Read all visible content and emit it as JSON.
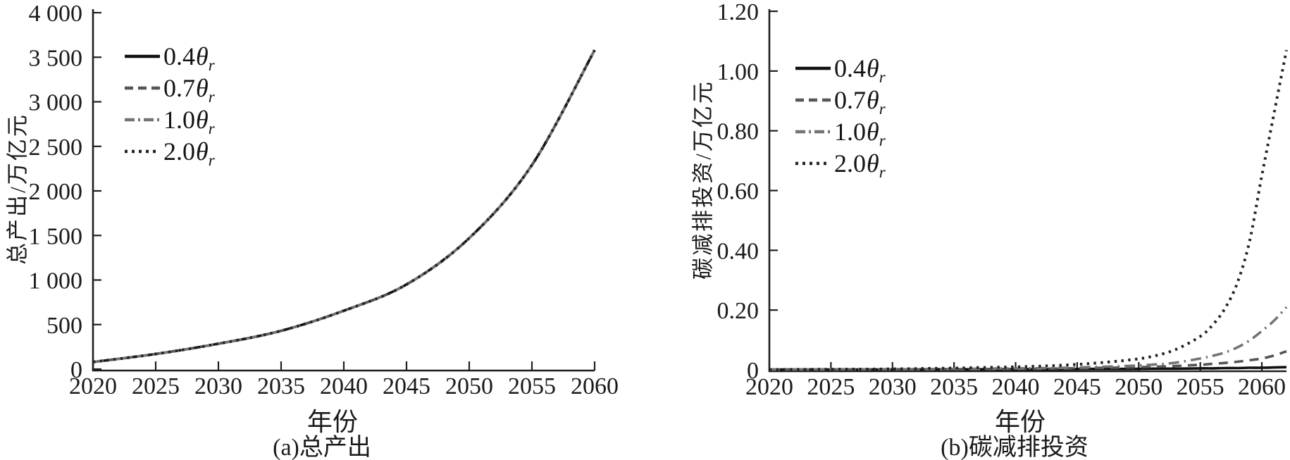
{
  "chart_data": [
    {
      "type": "line",
      "panel": "a",
      "caption": "(a)总产出",
      "xlabel": "年份",
      "ylabel": "总产出/万亿元",
      "xlim": [
        2020,
        2060
      ],
      "ylim": [
        0,
        4000
      ],
      "grid": false,
      "legend_position": "upper-left-inside",
      "x_ticks": [
        2020,
        2025,
        2030,
        2035,
        2040,
        2045,
        2050,
        2055,
        2060
      ],
      "x_tick_labels": [
        "2020",
        "2025",
        "2030",
        "2035",
        "2040",
        "2045",
        "2050",
        "2055",
        "2060"
      ],
      "y_ticks": [
        0,
        500,
        1000,
        1500,
        2000,
        2500,
        3000,
        3500,
        4000
      ],
      "y_tick_labels": [
        "0",
        "500",
        "1 000",
        "1 500",
        "2 000",
        "2 500",
        "3 000",
        "3 500",
        "4 000"
      ],
      "x": [
        2020,
        2025,
        2030,
        2035,
        2040,
        2045,
        2050,
        2055,
        2060
      ],
      "series": [
        {
          "name": "0.4θr",
          "label_coef": "0.4",
          "label_sym": "θ",
          "label_sub": "r",
          "style": "solid",
          "color": "#101010",
          "values": [
            80,
            170,
            285,
            430,
            655,
            950,
            1470,
            2290,
            3580
          ]
        },
        {
          "name": "0.7θr",
          "label_coef": "0.7",
          "label_sym": "θ",
          "label_sub": "r",
          "style": "dashed",
          "color": "#555555",
          "values": [
            80,
            170,
            285,
            430,
            655,
            950,
            1470,
            2290,
            3580
          ]
        },
        {
          "name": "1.0θr",
          "label_coef": "1.0",
          "label_sym": "θ",
          "label_sub": "r",
          "style": "dashdot",
          "color": "#747474",
          "values": [
            80,
            170,
            285,
            430,
            655,
            950,
            1470,
            2290,
            3580
          ]
        },
        {
          "name": "2.0θr",
          "label_coef": "2.0",
          "label_sym": "θ",
          "label_sub": "r",
          "style": "dotted",
          "color": "#232323",
          "values": [
            80,
            170,
            285,
            430,
            655,
            950,
            1470,
            2290,
            3580
          ]
        }
      ]
    },
    {
      "type": "line",
      "panel": "b",
      "caption": "(b)碳减排投资",
      "xlabel": "年份",
      "ylabel": "碳减排投资/万亿元",
      "xlim": [
        2020,
        2062
      ],
      "ylim": [
        0,
        1.2
      ],
      "grid": false,
      "legend_position": "upper-left-inside",
      "x_ticks": [
        2020,
        2025,
        2030,
        2035,
        2040,
        2045,
        2050,
        2055,
        2060
      ],
      "x_tick_labels": [
        "2020",
        "2025",
        "2030",
        "2035",
        "2040",
        "2045",
        "2050",
        "2055",
        "2060"
      ],
      "y_ticks": [
        0,
        0.2,
        0.4,
        0.6,
        0.8,
        1.0,
        1.2
      ],
      "y_tick_labels": [
        "0",
        "0.20",
        "0.40",
        "0.60",
        "0.80",
        "1.00",
        "1.20"
      ],
      "x": [
        2020,
        2025,
        2030,
        2035,
        2040,
        2043,
        2046,
        2049,
        2051,
        2053,
        2055,
        2056,
        2057,
        2058,
        2059,
        2060,
        2061,
        2062
      ],
      "series": [
        {
          "name": "0.4θr",
          "label_coef": "0.4",
          "label_sym": "θ",
          "label_sub": "r",
          "style": "solid",
          "color": "#101010",
          "values": [
            0.001,
            0.001,
            0.001,
            0.002,
            0.002,
            0.002,
            0.003,
            0.003,
            0.004,
            0.004,
            0.005,
            0.005,
            0.006,
            0.006,
            0.007,
            0.007,
            0.008,
            0.009
          ]
        },
        {
          "name": "0.7θr",
          "label_coef": "0.7",
          "label_sym": "θ",
          "label_sub": "r",
          "style": "dashed",
          "color": "#555555",
          "values": [
            0.001,
            0.001,
            0.002,
            0.002,
            0.003,
            0.004,
            0.006,
            0.008,
            0.01,
            0.013,
            0.017,
            0.02,
            0.023,
            0.027,
            0.032,
            0.038,
            0.048,
            0.062
          ]
        },
        {
          "name": "1.0θr",
          "label_coef": "1.0",
          "label_sym": "θ",
          "label_sub": "r",
          "style": "dashdot",
          "color": "#747474",
          "values": [
            0.001,
            0.002,
            0.002,
            0.003,
            0.005,
            0.006,
            0.009,
            0.013,
            0.017,
            0.024,
            0.038,
            0.047,
            0.058,
            0.075,
            0.098,
            0.13,
            0.165,
            0.21
          ]
        },
        {
          "name": "2.0θr",
          "label_coef": "2.0",
          "label_sym": "θ",
          "label_sub": "r",
          "style": "dotted",
          "color": "#232323",
          "values": [
            0.001,
            0.002,
            0.003,
            0.006,
            0.01,
            0.014,
            0.021,
            0.032,
            0.044,
            0.068,
            0.112,
            0.15,
            0.205,
            0.29,
            0.43,
            0.65,
            0.86,
            1.07
          ]
        }
      ]
    }
  ]
}
